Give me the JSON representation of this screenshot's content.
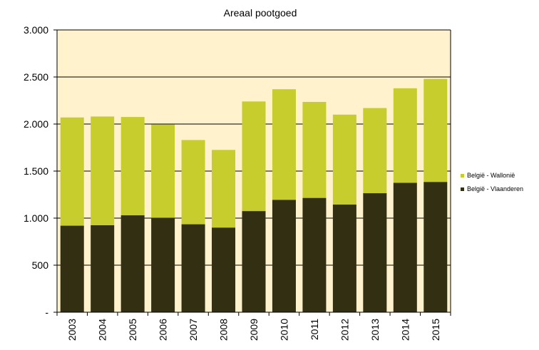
{
  "chart_data": {
    "type": "bar",
    "stacked": true,
    "title": "Areaal pootgoed",
    "xlabel": "",
    "ylabel": "",
    "categories": [
      "2003",
      "2004",
      "2005",
      "2006",
      "2007",
      "2008",
      "2009",
      "2010",
      "2011",
      "2012",
      "2013",
      "2014",
      "2015"
    ],
    "series": [
      {
        "name": "België - Vlaanderen",
        "color": "#332f12",
        "values": [
          920,
          925,
          1030,
          1005,
          935,
          900,
          1075,
          1195,
          1215,
          1145,
          1265,
          1375,
          1385
        ]
      },
      {
        "name": "België - Wallonië",
        "color": "#c6cd2c",
        "values": [
          1150,
          1155,
          1045,
          990,
          895,
          825,
          1165,
          1175,
          1020,
          955,
          905,
          1005,
          1095
        ]
      }
    ],
    "ylim": [
      0,
      3000
    ],
    "yticks": [
      0,
      500,
      1000,
      1500,
      2000,
      2500,
      3000
    ],
    "ytick_labels": [
      "-",
      "500",
      "1.000",
      "1.500",
      "2.000",
      "2.500",
      "3.000"
    ],
    "grid": true,
    "legend_position": "right",
    "plot_background": "#fff2cc"
  }
}
